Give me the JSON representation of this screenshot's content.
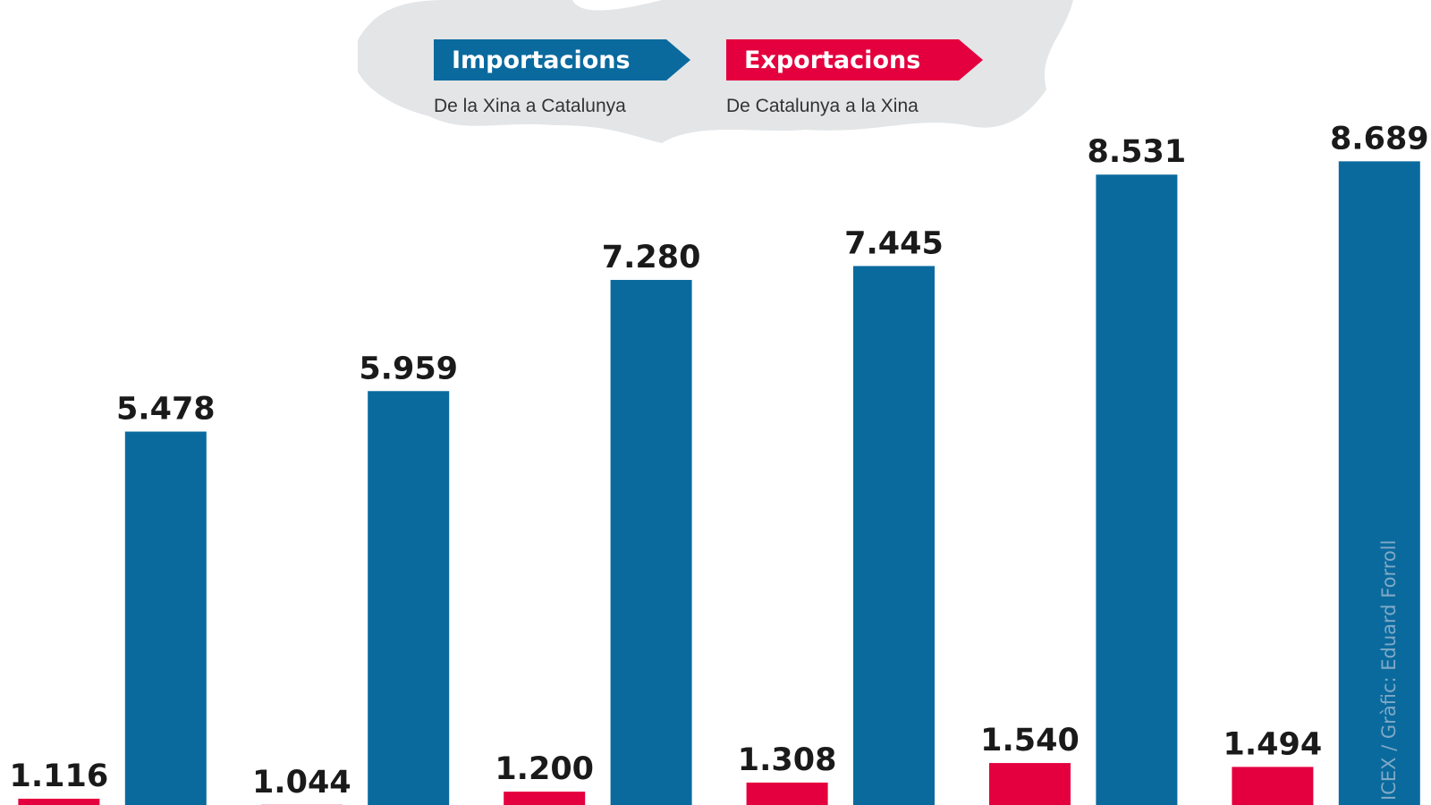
{
  "chart_data": {
    "type": "bar",
    "categories": [
      null,
      null,
      null,
      null,
      null,
      null
    ],
    "series": [
      {
        "name": "Exportacions",
        "description": "De Catalunya a la Xina",
        "color": "#e4003e",
        "values": [
          1116,
          1044,
          1200,
          1308,
          1540,
          1494
        ],
        "value_labels": [
          "1.116",
          "1.044",
          "1.200",
          "1.308",
          "1.540",
          "1.494"
        ]
      },
      {
        "name": "Importacions",
        "description": "De la Xina a Catalunya",
        "color": "#0a6a9e",
        "values": [
          5478,
          5959,
          7280,
          7445,
          8531,
          8689
        ],
        "value_labels": [
          "5.478",
          "5.959",
          "7.280",
          "7.445",
          "8.531",
          "8.689"
        ]
      }
    ],
    "source": "ICEX / Gràfic: Eduard Forroll"
  }
}
